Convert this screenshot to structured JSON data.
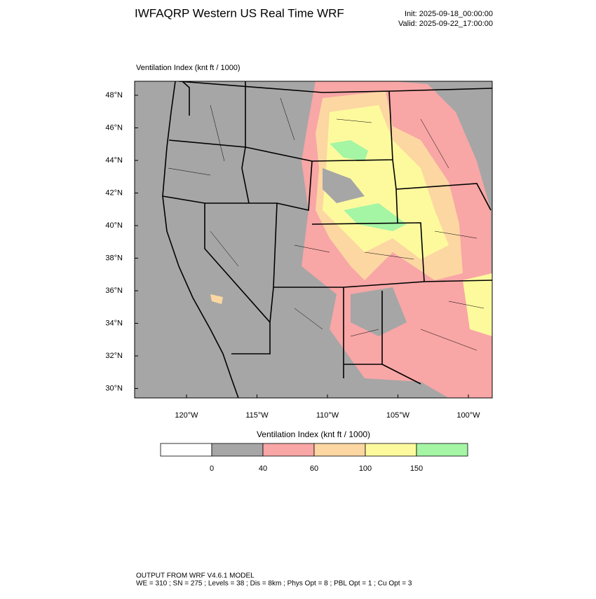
{
  "header": {
    "title": "IWFAQRP Western US Real Time WRF",
    "init": "Init: 2025-09-18_00:00:00",
    "valid": "Valid: 2025-09-22_17:00:00"
  },
  "plot": {
    "label": "Ventilation Index   (knt ft / 1000)"
  },
  "axes": {
    "lat_labels": [
      "48°N",
      "46°N",
      "44°N",
      "42°N",
      "40°N",
      "38°N",
      "36°N",
      "34°N",
      "32°N",
      "30°N"
    ],
    "lon_labels": [
      "120°W",
      "115°W",
      "110°W",
      "105°W",
      "100°W"
    ]
  },
  "colorbar": {
    "title": "Ventilation Index   (knt ft / 1000)",
    "colors": [
      "#ffffff",
      "#a6a6a6",
      "#f8a6a6",
      "#fcd7a2",
      "#fdfa9e",
      "#a4f5a4"
    ],
    "labels": [
      "0",
      "40",
      "60",
      "100",
      "150"
    ]
  },
  "footer": {
    "line1": "OUTPUT FROM WRF V4.6.1 MODEL",
    "line2": "WE = 310 ; SN = 275 ; Levels = 38 ; Dis = 8km ; Phys Opt = 8 ; PBL Opt = 1 ; Cu Opt = 3"
  }
}
